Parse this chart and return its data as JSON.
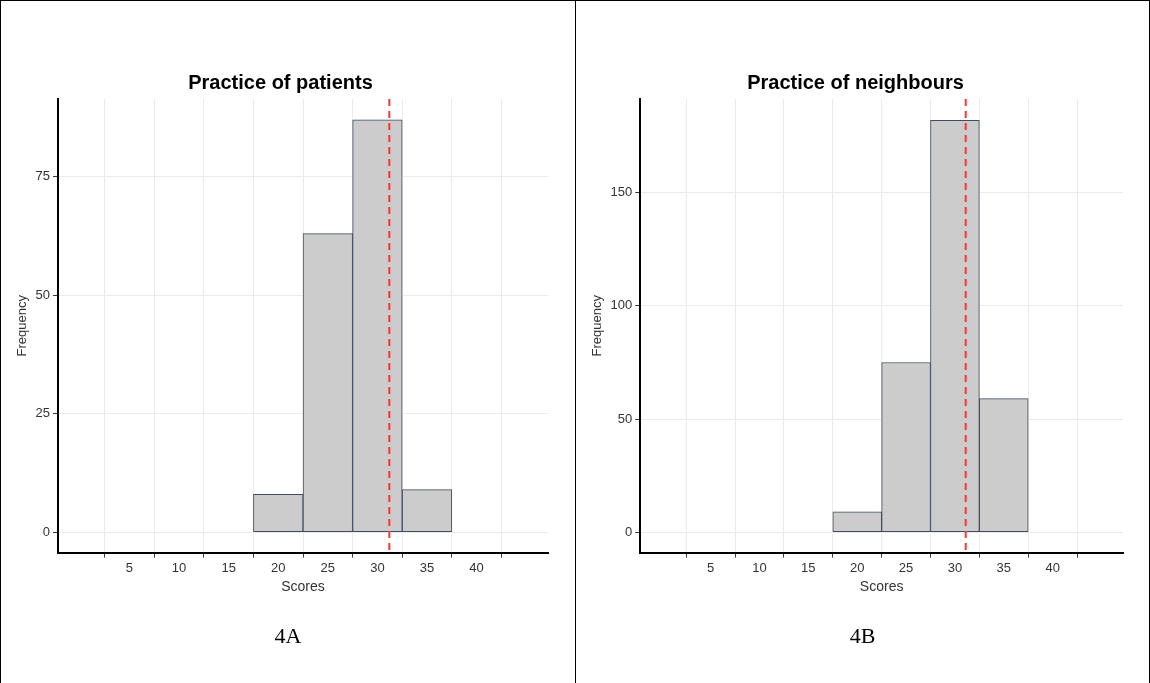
{
  "chart_data": [
    {
      "type": "histogram",
      "title": "Practice of patients",
      "xlabel": "Scores",
      "ylabel": "Frequency",
      "bins": [
        2.5,
        7.5,
        12.5,
        17.5,
        22.5,
        27.5,
        32.5,
        37.5,
        42.5
      ],
      "values": [
        0,
        0,
        0,
        8,
        63,
        87,
        9,
        0
      ],
      "color": "#cccccc",
      "xlim": [
        -2.2,
        47.2
      ],
      "xticks": [
        5,
        10,
        15,
        20,
        25,
        30,
        35,
        40
      ],
      "ylim": [
        -4.3,
        91.4
      ],
      "yticks": [
        0,
        25,
        50,
        75
      ],
      "grid": true,
      "ref_lines": [
        {
          "axis": "x",
          "value": 31.2,
          "color": "#ff3333",
          "line_style": "dashed"
        }
      ],
      "annotations": [
        "4A"
      ]
    },
    {
      "type": "histogram",
      "title": "Practice of neighbours",
      "xlabel": "Scores",
      "ylabel": "Frequency",
      "bins": [
        2.5,
        7.5,
        12.5,
        17.5,
        22.5,
        27.5,
        32.5,
        37.5,
        42.5
      ],
      "values": [
        0,
        0,
        0,
        9,
        75,
        182,
        59,
        0
      ],
      "color": "#cccccc",
      "xlim": [
        -2.2,
        47.2
      ],
      "xticks": [
        5,
        10,
        15,
        20,
        25,
        30,
        35,
        40
      ],
      "ylim": [
        -9,
        191.4
      ],
      "yticks": [
        0,
        50,
        100,
        150
      ],
      "grid": true,
      "ref_lines": [
        {
          "axis": "x",
          "value": 31.1,
          "color": "#ff3333",
          "line_style": "dashed"
        }
      ],
      "annotations": [
        "4B"
      ]
    }
  ]
}
